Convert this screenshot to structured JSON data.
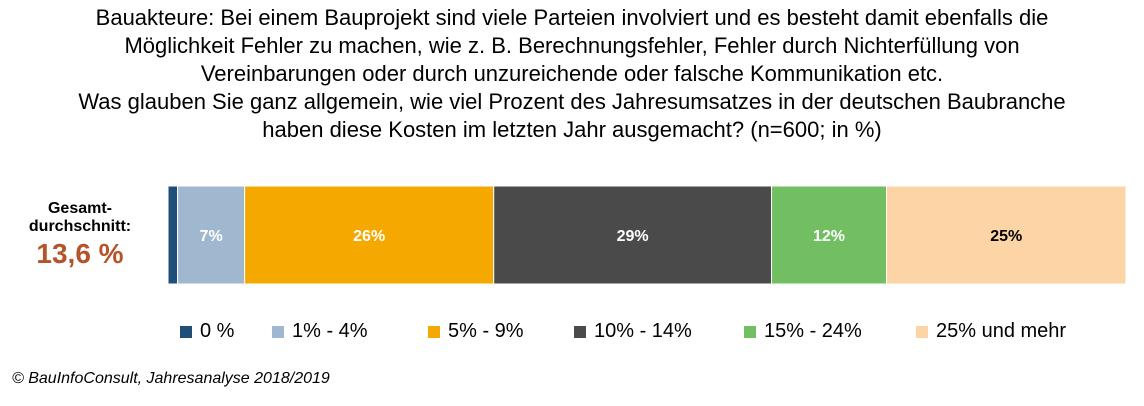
{
  "title_lines": [
    "Bauakteure: Bei einem Bauprojekt sind viele Parteien involviert und es besteht damit ebenfalls die",
    "Möglichkeit Fehler zu machen, wie z. B. Berechnungsfehler,  Fehler durch Nichterfüllung von",
    "Vereinbarungen oder durch unzureichende oder falsche Kommunikation etc.",
    "Was glauben Sie ganz allgemein, wie viel Prozent des Jahresumsatzes in der deutschen Baubranche",
    "haben diese Kosten im letzten Jahr ausgemacht? (n=600; in %)"
  ],
  "average": {
    "label_line1": "Gesamt-",
    "label_line2": "durchschnitt:",
    "value": "13,6 %",
    "color": "#b5532a"
  },
  "source": "© BauInfoConsult, Jahresanalyse 2018/2019",
  "chart_data": {
    "type": "bar",
    "orientation": "horizontal-stacked-100",
    "categories": [
      "Gesamtdurchschnitt"
    ],
    "series": [
      {
        "name": "0 %",
        "values": [
          1
        ],
        "color": "#1f4e79",
        "label": ""
      },
      {
        "name": "1% - 4%",
        "values": [
          7
        ],
        "color": "#9fb8cf",
        "label": "7%"
      },
      {
        "name": "5% - 9%",
        "values": [
          26
        ],
        "color": "#f5a800",
        "label": "26%"
      },
      {
        "name": "10% - 14%",
        "values": [
          29
        ],
        "color": "#4a4a4a",
        "label": "29%"
      },
      {
        "name": "15% - 24%",
        "values": [
          12
        ],
        "color": "#72bf63",
        "label": "12%"
      },
      {
        "name": "25% und mehr",
        "values": [
          25
        ],
        "color": "#fdd4a6",
        "label": "25%"
      }
    ],
    "label_colors": [
      "#ffffff",
      "#ffffff",
      "#ffffff",
      "#ffffff",
      "#ffffff",
      "#000000"
    ],
    "legend": "bottom",
    "grid": false
  }
}
